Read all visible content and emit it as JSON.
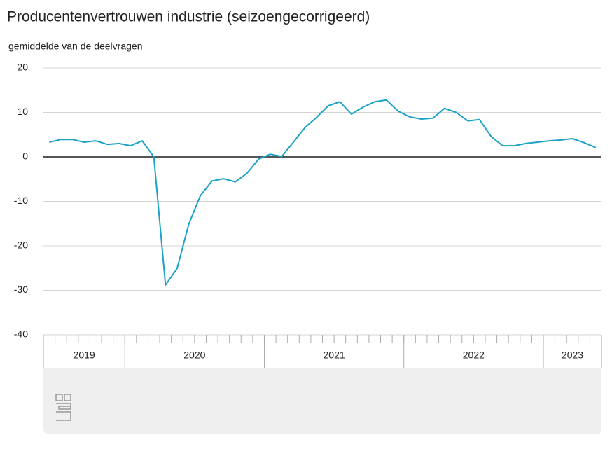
{
  "chart_data": {
    "type": "line",
    "title": "Producentenvertrouwen industrie (seizoengecorrigeerd)",
    "subtitle": "gemiddelde van de deelvragen",
    "categories": [
      null,
      null,
      null,
      null,
      null,
      null,
      null,
      null,
      null,
      null,
      null,
      null,
      null,
      null,
      null,
      null,
      null,
      null,
      null,
      null,
      null,
      null,
      null,
      null,
      null,
      null,
      null,
      null,
      null,
      null,
      null,
      null,
      null,
      null,
      null,
      null,
      null,
      null,
      null,
      null,
      null,
      null,
      null,
      null,
      null,
      null,
      null,
      null
    ],
    "years": [
      "2019",
      "2020",
      "2021",
      "2022",
      "2023"
    ],
    "year_spans": [
      7,
      12,
      12,
      12,
      5
    ],
    "series": [
      {
        "name": "Producentenvertrouwen",
        "color": "#1ba3c6",
        "values": [
          3.3,
          3.9,
          3.9,
          3.3,
          3.6,
          2.8,
          3.0,
          2.5,
          3.6,
          0,
          -28.8,
          -25.1,
          -15.1,
          -8.7,
          -5.4,
          -4.9,
          -5.6,
          -3.7,
          -0.5,
          0.6,
          0.1,
          3.3,
          6.6,
          8.9,
          11.5,
          12.4,
          9.6,
          11.2,
          12.4,
          12.8,
          10.3,
          9.0,
          8.5,
          8.7,
          10.9,
          10.0,
          8.1,
          8.4,
          4.6,
          2.5,
          2.5,
          3.0,
          3.3,
          3.6,
          3.8,
          4.1,
          3.2,
          2.1
        ]
      }
    ],
    "ylim": [
      -40,
      20
    ],
    "yticks": [
      -40,
      -30,
      -20,
      -10,
      0,
      10,
      20
    ],
    "grid": true
  }
}
